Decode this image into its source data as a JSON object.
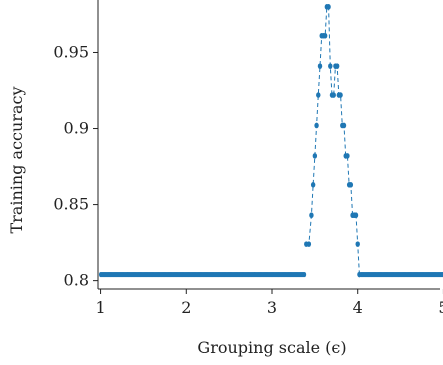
{
  "chart_data": {
    "type": "scatter",
    "title": "",
    "xlabel": "Grouping scale (ϵ)",
    "ylabel": "Training accuracy",
    "xlim": [
      0.97,
      5.03
    ],
    "ylim": [
      0.7945,
      0.9845
    ],
    "xticks": [
      1,
      2,
      3,
      4,
      5
    ],
    "xtick_labels": [
      "1",
      "2",
      "3",
      "4",
      "5"
    ],
    "yticks": [
      0.8,
      0.85,
      0.9,
      0.95
    ],
    "ytick_labels": [
      "0.8",
      "0.85",
      "0.9",
      "0.95"
    ],
    "grid": false,
    "legend": "none",
    "marker_color": "#1f77b4",
    "line_style": "dashed",
    "baseline_accuracy": 0.804,
    "series": [
      {
        "x": [
          3.4,
          3.43,
          3.46,
          3.48,
          3.5,
          3.52,
          3.54,
          3.56,
          3.58,
          3.6,
          3.62,
          3.64,
          3.66,
          3.68,
          3.7,
          3.72,
          3.74,
          3.76,
          3.78,
          3.8,
          3.82,
          3.84,
          3.86,
          3.88,
          3.9,
          3.92,
          3.94,
          3.96,
          3.98,
          4.0,
          4.02
        ],
        "y": [
          0.824,
          0.824,
          0.843,
          0.863,
          0.882,
          0.902,
          0.922,
          0.941,
          0.961,
          0.961,
          0.961,
          0.98,
          0.98,
          0.941,
          0.922,
          0.922,
          0.941,
          0.941,
          0.922,
          0.922,
          0.902,
          0.902,
          0.882,
          0.882,
          0.863,
          0.863,
          0.843,
          0.843,
          0.843,
          0.824,
          0.804
        ]
      }
    ]
  }
}
